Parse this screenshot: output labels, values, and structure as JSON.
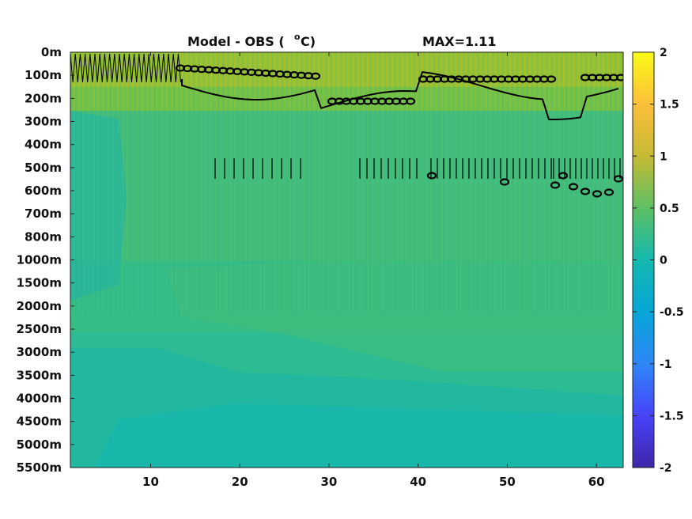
{
  "chart_data": {
    "type": "heatmap",
    "title_left": "Model - OBS (",
    "title_unit_sup": "o",
    "title_unit": "C)",
    "title_max": "MAX=1.11",
    "x_ticks": [
      "10",
      "20",
      "30",
      "40",
      "50",
      "60"
    ],
    "x_tick_values": [
      10,
      20,
      30,
      40,
      50,
      60
    ],
    "xlim": [
      1,
      63
    ],
    "y_ticks": [
      "0m",
      "100m",
      "200m",
      "300m",
      "400m",
      "500m",
      "600m",
      "700m",
      "800m",
      "1000m",
      "1500m",
      "2000m",
      "2500m",
      "3000m",
      "3500m",
      "4000m",
      "4500m",
      "5000m",
      "5500m"
    ],
    "colorbar": {
      "ticks": [
        "2",
        "1.5",
        "1",
        "0.5",
        "0",
        "-0.5",
        "-1",
        "-1.5",
        "-2"
      ],
      "tick_values": [
        2,
        1.5,
        1,
        0.5,
        0,
        -0.5,
        -1,
        -1.5,
        -2
      ],
      "clim": [
        -2,
        2
      ],
      "colormap": "parula",
      "stops": [
        "#3e26a8",
        "#4743f9",
        "#2e87f7",
        "#06a6d7",
        "#14b9ae",
        "#5dc063",
        "#c5ba33",
        "#fdbf3b",
        "#f9fb15"
      ]
    },
    "contour_levels": [
      -0.5,
      0.5,
      1.0
    ],
    "regions": [
      {
        "depth_range": [
          "0m",
          "150m"
        ],
        "value_approx": 0.8,
        "description_color": "#a0c032"
      },
      {
        "depth_range": [
          "150m",
          "300m"
        ],
        "value_approx": 0.4,
        "description_color": "#3dbf7f"
      },
      {
        "depth_range": [
          "300m",
          "1000m"
        ],
        "value_approx": 0.3,
        "description_color": "#4ebe77"
      },
      {
        "depth_range": [
          "1000m",
          "5500m"
        ],
        "value_approx": 0.2,
        "description_color": "#2fbb97"
      }
    ]
  }
}
